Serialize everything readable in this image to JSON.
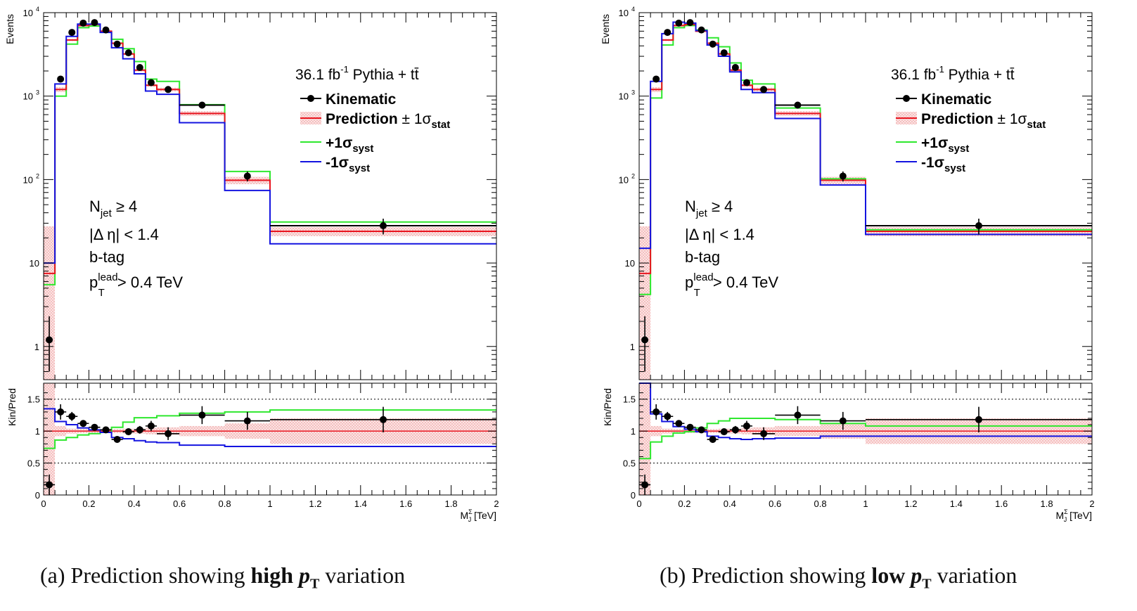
{
  "chart_data": [
    {
      "type": "histogram-with-ratio",
      "panel_label": "(a)",
      "caption_prefix": "Prediction showing",
      "caption_bold": "high",
      "caption_var": "p",
      "caption_var_sub": "T",
      "caption_suffix": "variation",
      "ylabel": "Events",
      "ratio_ylabel": "Kin/Pred",
      "xlabel_sym": "M",
      "xlabel_sub": "J",
      "xlabel_sup": "Σ",
      "xlabel_unit": "[TeV]",
      "lumi_text": "36.1 fb",
      "lumi_sup": "-1",
      "generator_text": "Pythia + tt̄",
      "legend": {
        "kinematic": "Kinematic",
        "prediction": "Prediction",
        "pm": "± 1σ",
        "stat_sub": "stat",
        "plus": "+1σ",
        "minus": "-1σ",
        "syst_sub": "syst"
      },
      "selection": {
        "njet_sym": "N",
        "njet_sub": "jet",
        "njet_cut": "≥ 4",
        "deta": "|Δ η| < 1.4",
        "btag": "b-tag",
        "pt_sym": "p",
        "pt_sup": "lead",
        "pt_sub": "T",
        "pt_cut": "> 0.4 TeV"
      },
      "xlim": [
        0,
        2
      ],
      "ylim_log": [
        0.4,
        10000
      ],
      "ratio_ylim": [
        0,
        1.75
      ],
      "x_ticks": [
        "0",
        "0.2",
        "0.4",
        "0.6",
        "0.8",
        "1",
        "1.2",
        "1.4",
        "1.6",
        "1.8",
        "2"
      ],
      "y_ticks": [
        {
          "v": 1,
          "label": "1"
        },
        {
          "v": 10,
          "label": "10"
        },
        {
          "v": 100,
          "label": "10",
          "sup": "2"
        },
        {
          "v": 1000,
          "label": "10",
          "sup": "3"
        },
        {
          "v": 10000,
          "label": "10",
          "sup": "4"
        }
      ],
      "ratio_ticks": [
        "0",
        "0.5",
        "1",
        "1.5"
      ],
      "bin_edges": [
        0,
        0.05,
        0.1,
        0.15,
        0.2,
        0.25,
        0.3,
        0.35,
        0.4,
        0.45,
        0.5,
        0.6,
        0.8,
        1.0,
        2.0
      ],
      "prediction": [
        7.5,
        1200,
        4700,
        7000,
        7200,
        6000,
        4300,
        3200,
        2050,
        1350,
        1200,
        620,
        98,
        24
      ],
      "prediction_err": [
        20,
        80,
        150,
        200,
        200,
        170,
        130,
        100,
        70,
        50,
        60,
        40,
        10,
        3
      ],
      "plus_syst": [
        5.5,
        1000,
        4200,
        6600,
        6900,
        5900,
        4800,
        3700,
        2600,
        1600,
        1500,
        790,
        125,
        31
      ],
      "minus_syst": [
        10,
        1400,
        5200,
        7300,
        7300,
        5800,
        3800,
        2800,
        1850,
        1150,
        1050,
        480,
        74,
        17
      ],
      "kinematic": {
        "x": [
          0.025,
          0.075,
          0.125,
          0.175,
          0.225,
          0.275,
          0.325,
          0.375,
          0.425,
          0.475,
          0.55,
          0.7,
          0.9,
          1.5
        ],
        "y": [
          1.2,
          1600,
          5800,
          7500,
          7600,
          6200,
          4200,
          3300,
          2200,
          1450,
          1200,
          780,
          110,
          28
        ],
        "yerr_up": [
          1.1,
          100,
          200,
          250,
          250,
          200,
          150,
          130,
          100,
          80,
          70,
          70,
          15,
          6
        ],
        "yerr_down": [
          0.7,
          100,
          200,
          250,
          250,
          200,
          150,
          130,
          100,
          80,
          70,
          70,
          15,
          6
        ]
      },
      "ratio": {
        "y": [
          0.16,
          1.3,
          1.23,
          1.12,
          1.06,
          1.02,
          0.87,
          0.99,
          1.02,
          1.08,
          0.96,
          1.25,
          1.16,
          1.18
        ],
        "yerr": [
          0.16,
          0.12,
          0.07,
          0.05,
          0.04,
          0.04,
          0.04,
          0.05,
          0.06,
          0.08,
          0.1,
          0.14,
          0.14,
          0.2
        ],
        "plus_syst": [
          0.73,
          0.86,
          0.9,
          0.94,
          0.96,
          0.98,
          1.06,
          1.14,
          1.21,
          1.21,
          1.24,
          1.28,
          1.3,
          1.33
        ],
        "minus_syst": [
          1.35,
          1.15,
          1.1,
          1.05,
          1.02,
          0.98,
          0.9,
          0.88,
          0.85,
          0.83,
          0.82,
          0.78,
          0.76,
          0.76
        ],
        "stat_band": [
          1.6,
          0.08,
          0.04,
          0.03,
          0.03,
          0.03,
          0.03,
          0.04,
          0.04,
          0.05,
          0.06,
          0.08,
          0.12,
          0.2
        ]
      }
    },
    {
      "type": "histogram-with-ratio",
      "panel_label": "(b)",
      "caption_prefix": "Prediction showing",
      "caption_bold": "low",
      "caption_var": "p",
      "caption_var_sub": "T",
      "caption_suffix": "variation",
      "ylabel": "Events",
      "ratio_ylabel": "Kin/Pred",
      "xlabel_sym": "M",
      "xlabel_sub": "J",
      "xlabel_sup": "Σ",
      "xlabel_unit": "[TeV]",
      "lumi_text": "36.1 fb",
      "lumi_sup": "-1",
      "generator_text": "Pythia + tt̄",
      "legend": {
        "kinematic": "Kinematic",
        "prediction": "Prediction",
        "pm": "± 1σ",
        "stat_sub": "stat",
        "plus": "+1σ",
        "minus": "-1σ",
        "syst_sub": "syst"
      },
      "selection": {
        "njet_sym": "N",
        "njet_sub": "jet",
        "njet_cut": "≥ 4",
        "deta": "|Δ η| < 1.4",
        "btag": "b-tag",
        "pt_sym": "p",
        "pt_sup": "lead",
        "pt_sub": "T",
        "pt_cut": "> 0.4 TeV"
      },
      "xlim": [
        0,
        2
      ],
      "ylim_log": [
        0.4,
        10000
      ],
      "ratio_ylim": [
        0,
        1.75
      ],
      "x_ticks": [
        "0",
        "0.2",
        "0.4",
        "0.6",
        "0.8",
        "1",
        "1.2",
        "1.4",
        "1.6",
        "1.8",
        "2"
      ],
      "y_ticks": [
        {
          "v": 1,
          "label": "1"
        },
        {
          "v": 10,
          "label": "10"
        },
        {
          "v": 100,
          "label": "10",
          "sup": "2"
        },
        {
          "v": 1000,
          "label": "10",
          "sup": "3"
        },
        {
          "v": 10000,
          "label": "10",
          "sup": "4"
        }
      ],
      "ratio_ticks": [
        "0",
        "0.5",
        "1",
        "1.5"
      ],
      "bin_edges": [
        0,
        0.05,
        0.1,
        0.15,
        0.2,
        0.25,
        0.3,
        0.35,
        0.4,
        0.45,
        0.5,
        0.6,
        0.8,
        1.0,
        2.0
      ],
      "prediction": [
        7.5,
        1200,
        4700,
        7000,
        7200,
        6000,
        4300,
        3200,
        2050,
        1350,
        1200,
        620,
        98,
        24
      ],
      "prediction_err": [
        20,
        80,
        150,
        200,
        200,
        170,
        130,
        100,
        70,
        50,
        60,
        40,
        10,
        3
      ],
      "plus_syst": [
        4.2,
        950,
        4100,
        6600,
        7000,
        6200,
        5000,
        3900,
        2500,
        1550,
        1400,
        720,
        102,
        25
      ],
      "minus_syst": [
        15,
        1500,
        5600,
        7700,
        7500,
        6100,
        4100,
        3000,
        1950,
        1200,
        1100,
        540,
        86,
        22
      ],
      "kinematic": {
        "x": [
          0.025,
          0.075,
          0.125,
          0.175,
          0.225,
          0.275,
          0.325,
          0.375,
          0.425,
          0.475,
          0.55,
          0.7,
          0.9,
          1.5
        ],
        "y": [
          1.2,
          1600,
          5800,
          7500,
          7600,
          6200,
          4200,
          3300,
          2200,
          1450,
          1200,
          780,
          110,
          28
        ],
        "yerr_up": [
          1.1,
          100,
          200,
          250,
          250,
          200,
          150,
          130,
          100,
          80,
          70,
          70,
          15,
          6
        ],
        "yerr_down": [
          0.7,
          100,
          200,
          250,
          250,
          200,
          150,
          130,
          100,
          80,
          70,
          70,
          15,
          6
        ]
      },
      "ratio": {
        "y": [
          0.16,
          1.3,
          1.23,
          1.12,
          1.06,
          1.02,
          0.87,
          0.99,
          1.02,
          1.08,
          0.96,
          1.25,
          1.16,
          1.18
        ],
        "yerr": [
          0.16,
          0.12,
          0.07,
          0.05,
          0.04,
          0.04,
          0.04,
          0.05,
          0.06,
          0.08,
          0.1,
          0.14,
          0.14,
          0.2
        ],
        "plus_syst": [
          0.57,
          0.83,
          0.92,
          0.97,
          0.99,
          1.05,
          1.12,
          1.16,
          1.2,
          1.2,
          1.2,
          1.18,
          1.12,
          1.08
        ],
        "minus_syst": [
          1.95,
          1.27,
          1.15,
          1.07,
          1.03,
          0.99,
          0.92,
          0.9,
          0.88,
          0.87,
          0.88,
          0.89,
          0.92,
          0.92
        ],
        "stat_band": [
          1.6,
          0.08,
          0.04,
          0.03,
          0.03,
          0.03,
          0.03,
          0.04,
          0.04,
          0.05,
          0.06,
          0.08,
          0.12,
          0.2
        ]
      }
    }
  ]
}
